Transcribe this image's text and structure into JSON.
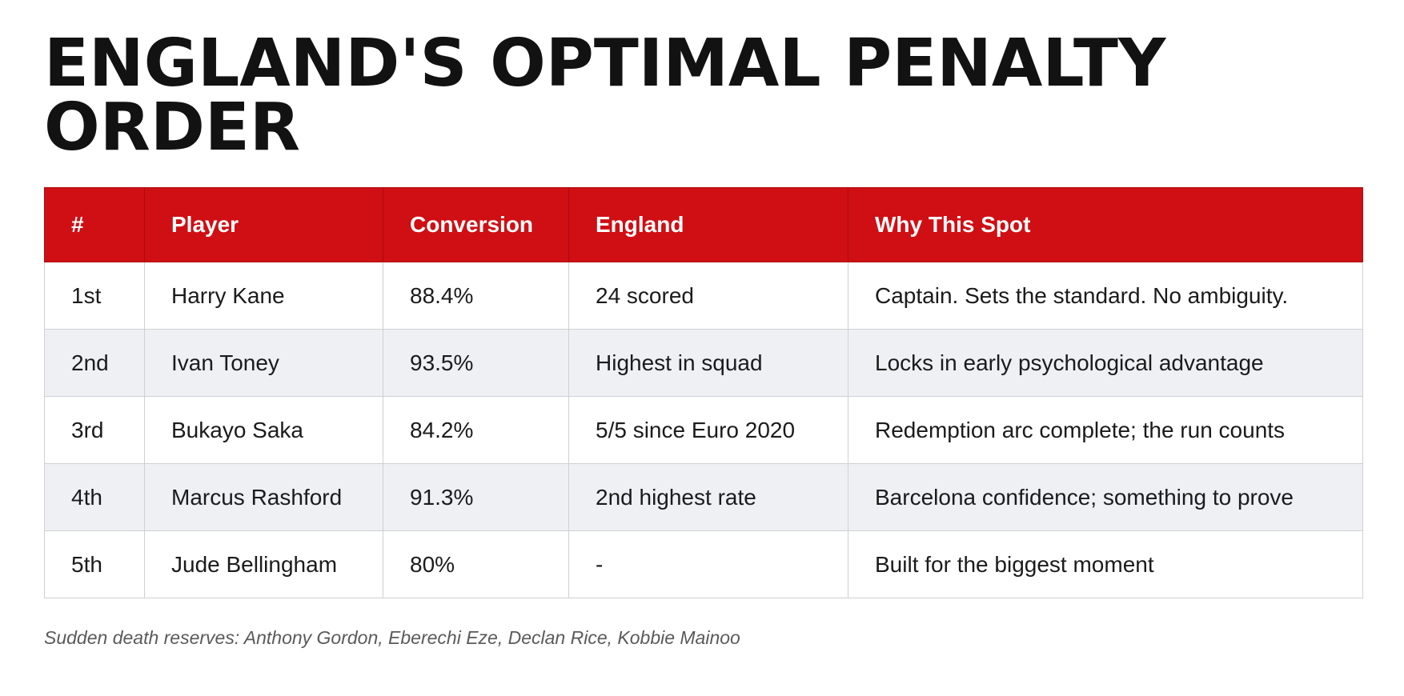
{
  "title": "ENGLAND'S OPTIMAL PENALTY ORDER",
  "table": {
    "headers": [
      "#",
      "Player",
      "Conversion",
      "England",
      "Why This Spot"
    ],
    "rows": [
      [
        "1st",
        "Harry Kane",
        "88.4%",
        "24 scored",
        "Captain. Sets the standard. No ambiguity."
      ],
      [
        "2nd",
        "Ivan Toney",
        "93.5%",
        "Highest in squad",
        "Locks in early psychological advantage"
      ],
      [
        "3rd",
        "Bukayo Saka",
        "84.2%",
        "5/5 since Euro 2020",
        "Redemption arc complete; the run counts"
      ],
      [
        "4th",
        "Marcus Rashford",
        "91.3%",
        "2nd highest rate",
        "Barcelona confidence; something to prove"
      ],
      [
        "5th",
        "Jude Bellingham",
        "80%",
        "-",
        "Built for the biggest moment"
      ]
    ]
  },
  "footnote": "Sudden death reserves: Anthony Gordon, Eberechi Eze, Declan Rice, Kobbie Mainoo",
  "colors": {
    "header_background": "#cf0f14",
    "header_text": "#ffffff",
    "row_alt_background": "#eff0f4",
    "border": "#cfd0d4"
  }
}
